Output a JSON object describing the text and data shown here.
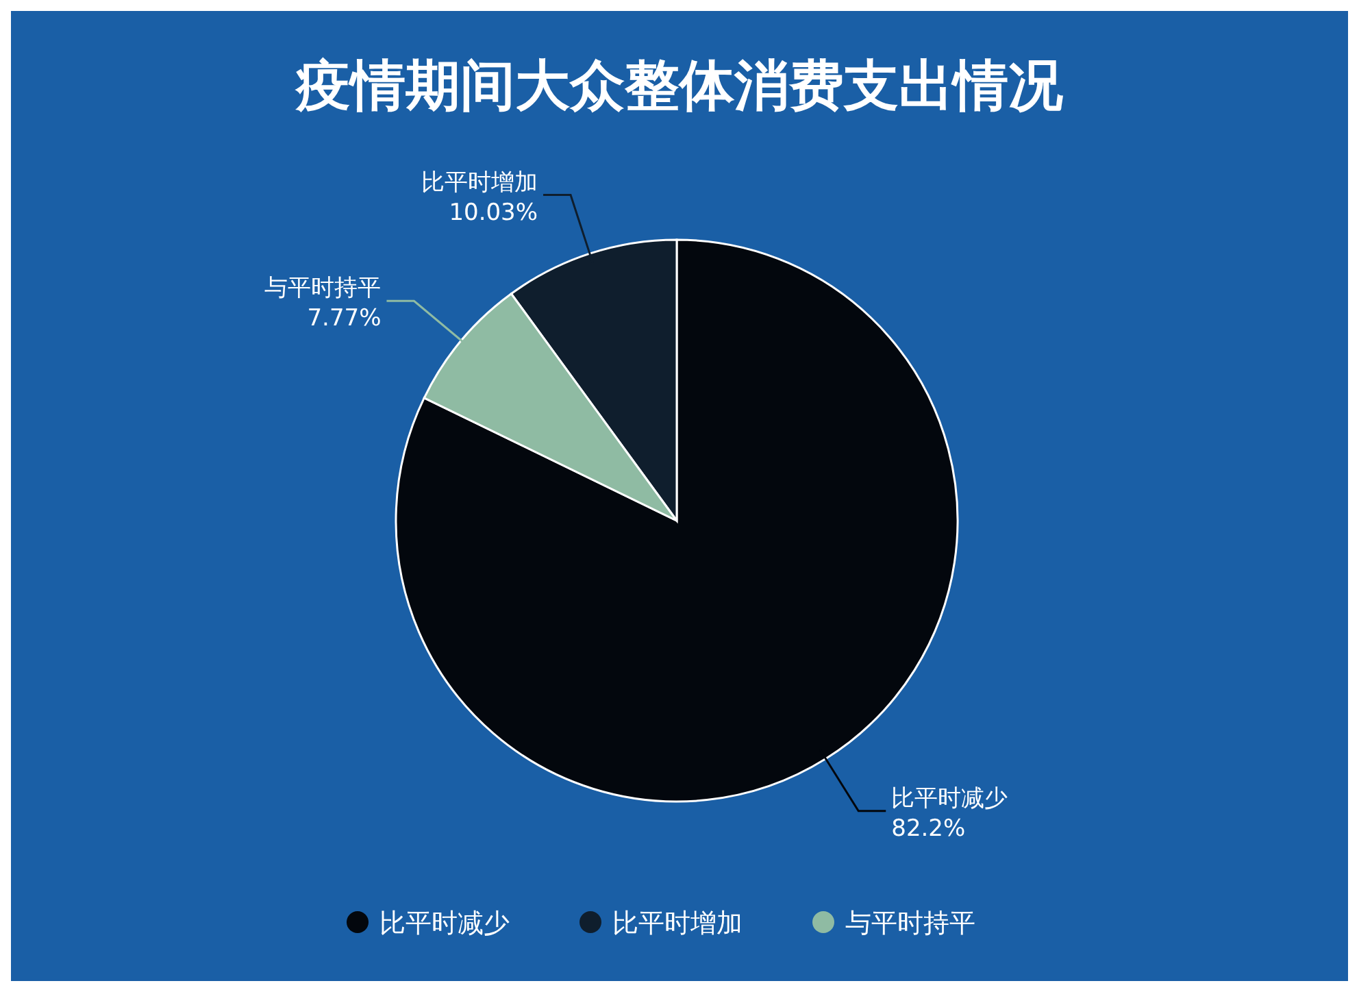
{
  "chart_data": {
    "type": "pie",
    "title": "疫情期间大众整体消费支出情况",
    "categories": [
      "比平时减少",
      "比平时增加",
      "与平时持平"
    ],
    "values": [
      82.2,
      10.03,
      7.77
    ],
    "value_labels": [
      "82.2%",
      "10.03%",
      "7.77%"
    ],
    "colors": [
      "#03070d",
      "#0f1e2d",
      "#8fbba3"
    ],
    "legend": "bottom"
  }
}
